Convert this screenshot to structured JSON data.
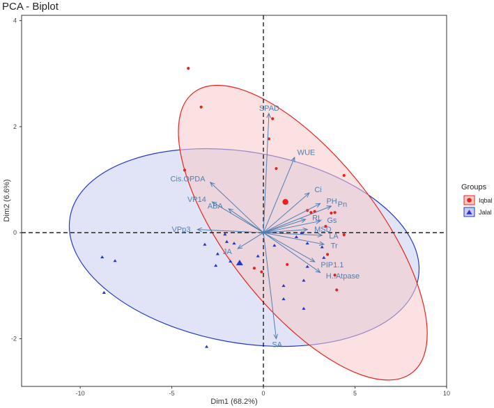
{
  "chart_data": {
    "type": "scatter",
    "title": "PCA - Biplot",
    "xlabel": "Dim1 (68.2%)",
    "ylabel": "Dim2 (6.6%)",
    "xlim": [
      -13.2,
      10.0
    ],
    "ylim": [
      -2.9,
      4.1
    ],
    "xticks": [
      -10,
      -5,
      0,
      5,
      10
    ],
    "yticks": [
      -2,
      0,
      2,
      4
    ],
    "legend": {
      "title": "Groups",
      "position": "right",
      "entries": [
        {
          "name": "Iqbal",
          "color": "#e8221b",
          "shape": "circle"
        },
        {
          "name": "Jalal",
          "color": "#2437c8",
          "shape": "triangle"
        }
      ]
    },
    "series": [
      {
        "name": "Iqbal",
        "color": "#e8221b",
        "fill": "#f7c9c9",
        "shape": "circle",
        "ellipse": {
          "cx": 2.15,
          "cy": 0.0,
          "rx": 4.1,
          "ry": 3.35,
          "angle_deg": -38
        },
        "centroid": {
          "x": 1.2,
          "y": 0.58
        },
        "points": [
          {
            "x": -4.1,
            "y": 3.1
          },
          {
            "x": -3.4,
            "y": 2.37
          },
          {
            "x": -4.3,
            "y": 1.18
          },
          {
            "x": 0.5,
            "y": 2.15
          },
          {
            "x": 0.3,
            "y": 1.77
          },
          {
            "x": 0.7,
            "y": 1.21
          },
          {
            "x": 2.4,
            "y": 0.42
          },
          {
            "x": 2.6,
            "y": 0.38
          },
          {
            "x": 2.8,
            "y": 0.4
          },
          {
            "x": 3.7,
            "y": 0.37
          },
          {
            "x": 3.9,
            "y": 0.38
          },
          {
            "x": 3.4,
            "y": 0.12
          },
          {
            "x": 4.4,
            "y": -0.04
          },
          {
            "x": 3.5,
            "y": -0.41
          },
          {
            "x": 4.4,
            "y": 1.08
          },
          {
            "x": 1.3,
            "y": -0.6
          },
          {
            "x": -0.5,
            "y": -0.67
          },
          {
            "x": -0.1,
            "y": -0.74
          },
          {
            "x": 3.9,
            "y": -0.8
          },
          {
            "x": 4.0,
            "y": -1.08
          }
        ]
      },
      {
        "name": "Jalal",
        "color": "#2437c8",
        "fill": "#c9cdf1",
        "shape": "triangle",
        "ellipse": {
          "cx": -1.05,
          "cy": -0.28,
          "rx": 9.65,
          "ry": 1.8,
          "angle_deg": 10
        },
        "centroid": {
          "x": -1.3,
          "y": -0.57
        },
        "points": [
          {
            "x": -8.8,
            "y": -0.46
          },
          {
            "x": -8.1,
            "y": -0.53
          },
          {
            "x": -8.7,
            "y": -1.13
          },
          {
            "x": -3.1,
            "y": -2.15
          },
          {
            "x": -1.6,
            "y": -0.2
          },
          {
            "x": -2.1,
            "y": -0.03
          },
          {
            "x": -2.0,
            "y": -0.17
          },
          {
            "x": -3.2,
            "y": -0.22
          },
          {
            "x": -2.5,
            "y": -0.4
          },
          {
            "x": -1.8,
            "y": -0.54
          },
          {
            "x": -2.6,
            "y": -0.62
          },
          {
            "x": -0.3,
            "y": -0.44
          },
          {
            "x": 0.6,
            "y": -0.24
          },
          {
            "x": 1.8,
            "y": -0.08
          },
          {
            "x": 2.1,
            "y": 0.0
          },
          {
            "x": 2.4,
            "y": -0.2
          },
          {
            "x": 3.2,
            "y": -0.27
          },
          {
            "x": 3.3,
            "y": -0.47
          },
          {
            "x": 2.4,
            "y": -0.64
          },
          {
            "x": 2.2,
            "y": -0.9
          },
          {
            "x": 1.1,
            "y": -1.0
          },
          {
            "x": 1.1,
            "y": -1.25
          },
          {
            "x": 2.2,
            "y": -1.43
          }
        ]
      }
    ],
    "variables": [
      {
        "name": "SPAD",
        "x": 0.3,
        "y": 2.25
      },
      {
        "name": "WUE",
        "x": 1.7,
        "y": 1.42
      },
      {
        "name": "Ci",
        "x": 2.5,
        "y": 0.75
      },
      {
        "name": "PH",
        "x": 3.1,
        "y": 0.55
      },
      {
        "name": "Pn",
        "x": 3.7,
        "y": 0.5
      },
      {
        "name": "RL",
        "x": 2.3,
        "y": 0.25
      },
      {
        "name": "Gs",
        "x": 3.1,
        "y": 0.22
      },
      {
        "name": "MSD",
        "x": 2.4,
        "y": 0.06
      },
      {
        "name": "LA",
        "x": 3.2,
        "y": -0.05
      },
      {
        "name": "Tr",
        "x": 3.3,
        "y": -0.22
      },
      {
        "name": "PIP1.1",
        "x": 2.8,
        "y": -0.55
      },
      {
        "name": "H..Atpase",
        "x": 3.1,
        "y": -0.75
      },
      {
        "name": "SA",
        "x": 0.7,
        "y": -2.0
      },
      {
        "name": "Cis.OPDA",
        "x": -2.9,
        "y": 0.95
      },
      {
        "name": "VP14",
        "x": -2.8,
        "y": 0.58
      },
      {
        "name": "ABA",
        "x": -1.9,
        "y": 0.45
      },
      {
        "name": "VPp3",
        "x": -3.6,
        "y": 0.06
      },
      {
        "name": "JA",
        "x": -1.4,
        "y": -0.3
      }
    ]
  }
}
